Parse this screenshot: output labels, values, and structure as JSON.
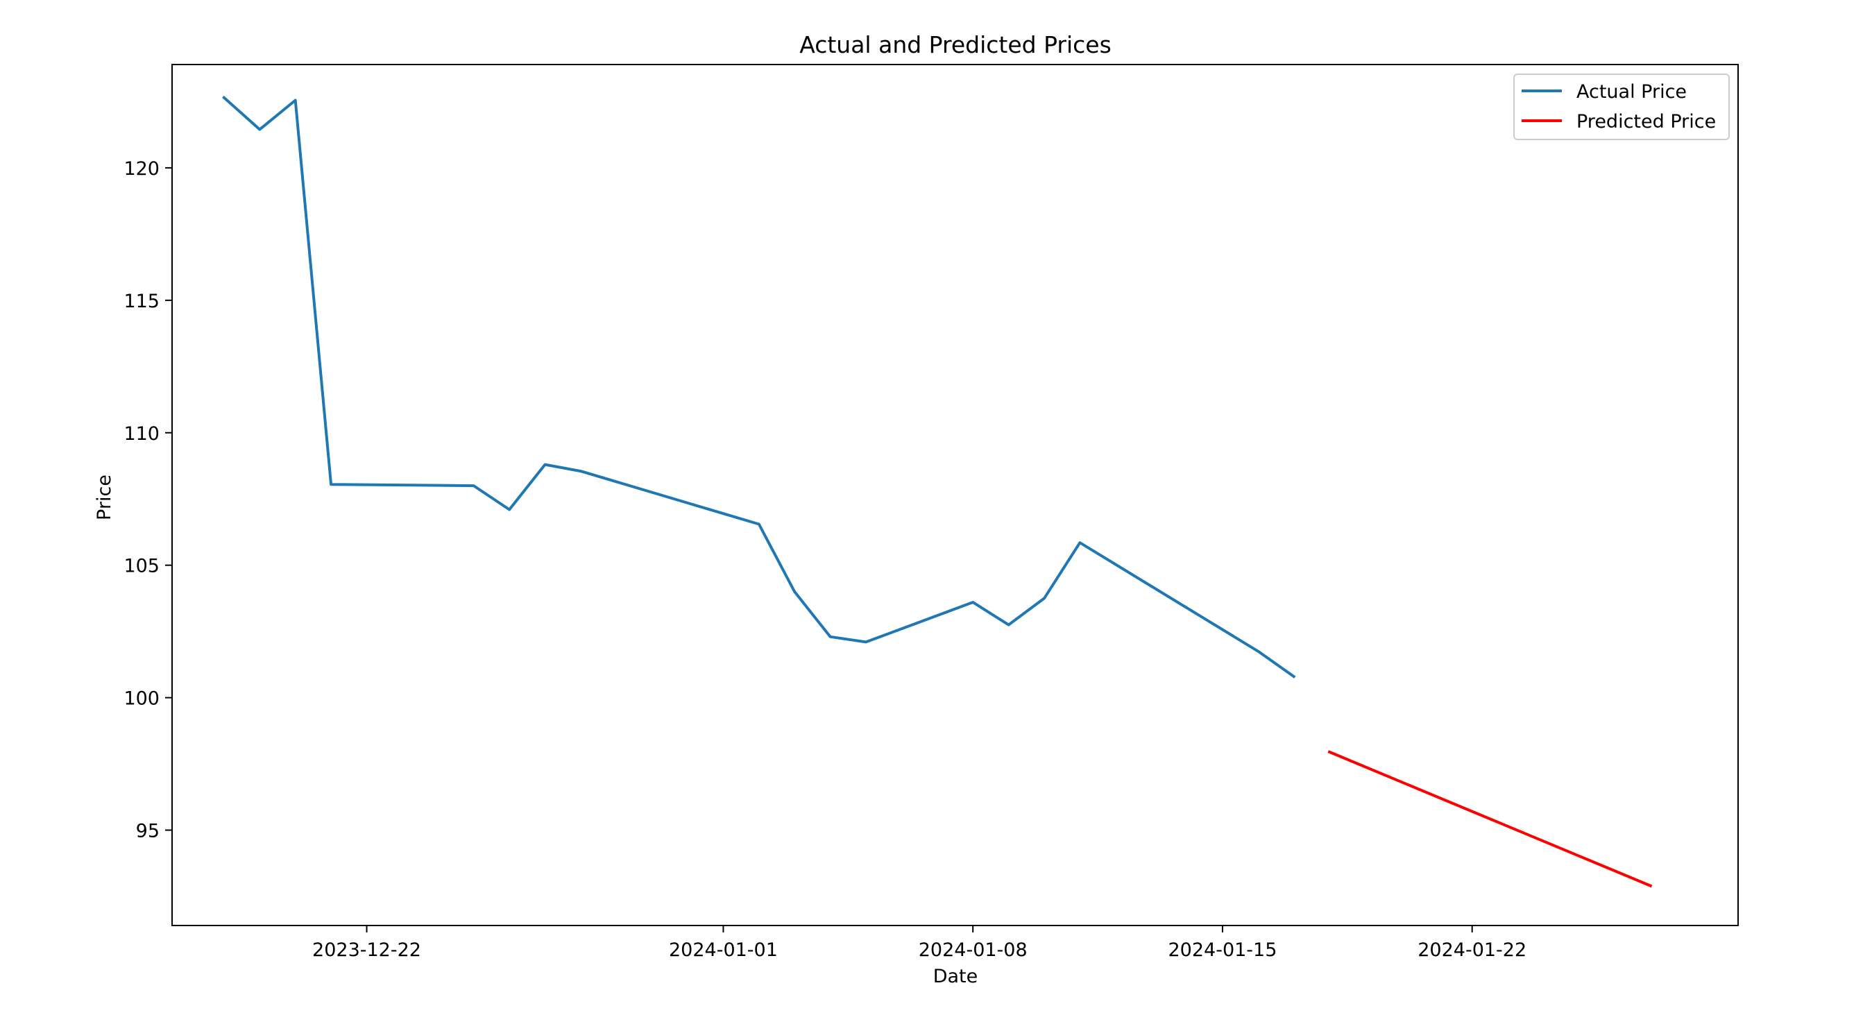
{
  "chart_data": {
    "type": "line",
    "title": "Actual and Predicted Prices",
    "xlabel": "Date",
    "ylabel": "Price",
    "x_axis_type": "date",
    "xlim": [
      "2023-12-16T13:00",
      "2024-01-29T11:00"
    ],
    "ylim": [
      91.4,
      123.9
    ],
    "x_ticks": [
      "2023-12-22",
      "2024-01-01",
      "2024-01-08",
      "2024-01-15",
      "2024-01-22"
    ],
    "y_ticks": [
      95,
      100,
      105,
      110,
      115,
      120
    ],
    "grid": false,
    "legend": {
      "placement": "top-right",
      "entries": [
        "Actual Price",
        "Predicted Price"
      ]
    },
    "series": [
      {
        "name": "Actual Price",
        "color": "#1f77b4",
        "points": [
          {
            "x": "2023-12-18",
            "y": 122.65
          },
          {
            "x": "2023-12-19",
            "y": 121.45
          },
          {
            "x": "2023-12-20",
            "y": 122.55
          },
          {
            "x": "2023-12-21",
            "y": 108.05
          },
          {
            "x": "2023-12-25",
            "y": 108.0
          },
          {
            "x": "2023-12-26",
            "y": 107.1
          },
          {
            "x": "2023-12-27",
            "y": 108.8
          },
          {
            "x": "2023-12-28",
            "y": 108.55
          },
          {
            "x": "2024-01-02",
            "y": 106.55
          },
          {
            "x": "2024-01-03",
            "y": 104.0
          },
          {
            "x": "2024-01-04",
            "y": 102.3
          },
          {
            "x": "2024-01-05",
            "y": 102.1
          },
          {
            "x": "2024-01-08",
            "y": 103.6
          },
          {
            "x": "2024-01-09",
            "y": 102.75
          },
          {
            "x": "2024-01-10",
            "y": 103.75
          },
          {
            "x": "2024-01-11",
            "y": 105.85
          },
          {
            "x": "2024-01-16",
            "y": 101.75
          },
          {
            "x": "2024-01-17",
            "y": 100.8
          }
        ]
      },
      {
        "name": "Predicted Price",
        "color": "#ff0000",
        "points": [
          {
            "x": "2024-01-18",
            "y": 97.95
          },
          {
            "x": "2024-01-27",
            "y": 92.9
          }
        ]
      }
    ]
  }
}
